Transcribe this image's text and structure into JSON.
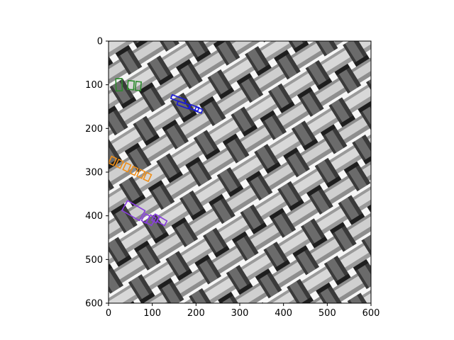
{
  "chart_data": {
    "type": "image",
    "title": "",
    "xlabel": "",
    "ylabel": "",
    "xlim": [
      0,
      600
    ],
    "ylim": [
      600,
      0
    ],
    "xticks": [
      0,
      100,
      200,
      300,
      400,
      500,
      600
    ],
    "yticks": [
      0,
      100,
      200,
      300,
      400,
      500,
      600
    ],
    "grid": false,
    "image_subject": "grayscale woven metal mesh",
    "annotation_groups": [
      {
        "color": "#2e8b2e",
        "boxes": [
          {
            "cx": 24,
            "cy": 100,
            "w": 14,
            "h": 28,
            "angle": -2
          },
          {
            "cx": 51,
            "cy": 101,
            "w": 14,
            "h": 20,
            "angle": 5
          },
          {
            "cx": 68,
            "cy": 103,
            "w": 12,
            "h": 20,
            "angle": 5
          }
        ]
      },
      {
        "color": "#1a1ad8",
        "boxes": [
          {
            "cx": 160,
            "cy": 133,
            "w": 34,
            "h": 9,
            "angle": 20
          },
          {
            "cx": 171,
            "cy": 146,
            "w": 28,
            "h": 9,
            "angle": 20
          },
          {
            "cx": 196,
            "cy": 153,
            "w": 20,
            "h": 9,
            "angle": 20
          },
          {
            "cx": 206,
            "cy": 158,
            "w": 16,
            "h": 9,
            "angle": 20
          }
        ]
      },
      {
        "color": "#ef8f1a",
        "boxes": [
          {
            "cx": 9,
            "cy": 274,
            "w": 12,
            "h": 17,
            "angle": 25
          },
          {
            "cx": 25,
            "cy": 281,
            "w": 12,
            "h": 17,
            "angle": 25
          },
          {
            "cx": 42,
            "cy": 289,
            "w": 12,
            "h": 17,
            "angle": 25
          },
          {
            "cx": 58,
            "cy": 297,
            "w": 12,
            "h": 17,
            "angle": 25
          },
          {
            "cx": 74,
            "cy": 304,
            "w": 12,
            "h": 17,
            "angle": 25
          },
          {
            "cx": 89,
            "cy": 311,
            "w": 12,
            "h": 17,
            "angle": 25
          }
        ]
      },
      {
        "color": "#8a3ee0",
        "boxes": [
          {
            "cx": 57,
            "cy": 388,
            "w": 46,
            "h": 26,
            "angle": 30
          },
          {
            "cx": 85,
            "cy": 406,
            "w": 12,
            "h": 18,
            "angle": 30
          },
          {
            "cx": 97,
            "cy": 410,
            "w": 14,
            "h": 20,
            "angle": 30
          },
          {
            "cx": 108,
            "cy": 406,
            "w": 12,
            "h": 16,
            "angle": 30
          },
          {
            "cx": 122,
            "cy": 412,
            "w": 20,
            "h": 12,
            "angle": 30
          }
        ]
      }
    ]
  }
}
